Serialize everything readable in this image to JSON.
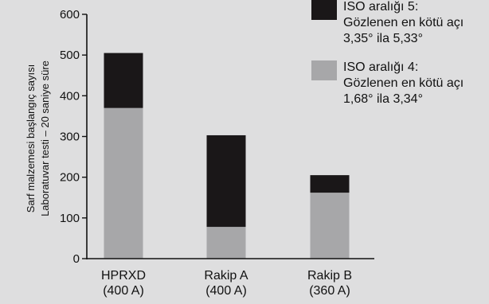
{
  "chart_data": {
    "type": "bar",
    "stacked": true,
    "categories": [
      [
        "HPRXD",
        "(400 A)"
      ],
      [
        "Rakip A",
        "(400 A)"
      ],
      [
        "Rakip B",
        "(360 A)"
      ]
    ],
    "series": [
      {
        "name": "ISO aralığı 4: Gözlenen en kötü açı 1,68° ila 3,34°",
        "legend_lines": [
          "ISO aralığı 4:",
          "Gözlenen en kötü açı",
          "1,68° ila 3,34°"
        ],
        "color": "#a7a7a9",
        "values": [
          370,
          78,
          162
        ]
      },
      {
        "name": "ISO aralığı 5: Gözlenen en kötü açı 3,35° ila 5,33°",
        "legend_lines": [
          "ISO aralığı 5:",
          "Gözlenen en kötü açı",
          "3,35° ila 5,33°"
        ],
        "color": "#1a1718",
        "values": [
          135,
          225,
          43
        ]
      }
    ],
    "ylabel_lines": [
      "Sarf malzemesi başlangıç sayısı",
      "Laboratuvar testi – 20 saniye süre"
    ],
    "xlabel": "",
    "ylim": [
      0,
      600
    ],
    "yticks": [
      0,
      100,
      200,
      300,
      400,
      500,
      600
    ],
    "grid": false,
    "legend_position": "top-right"
  }
}
